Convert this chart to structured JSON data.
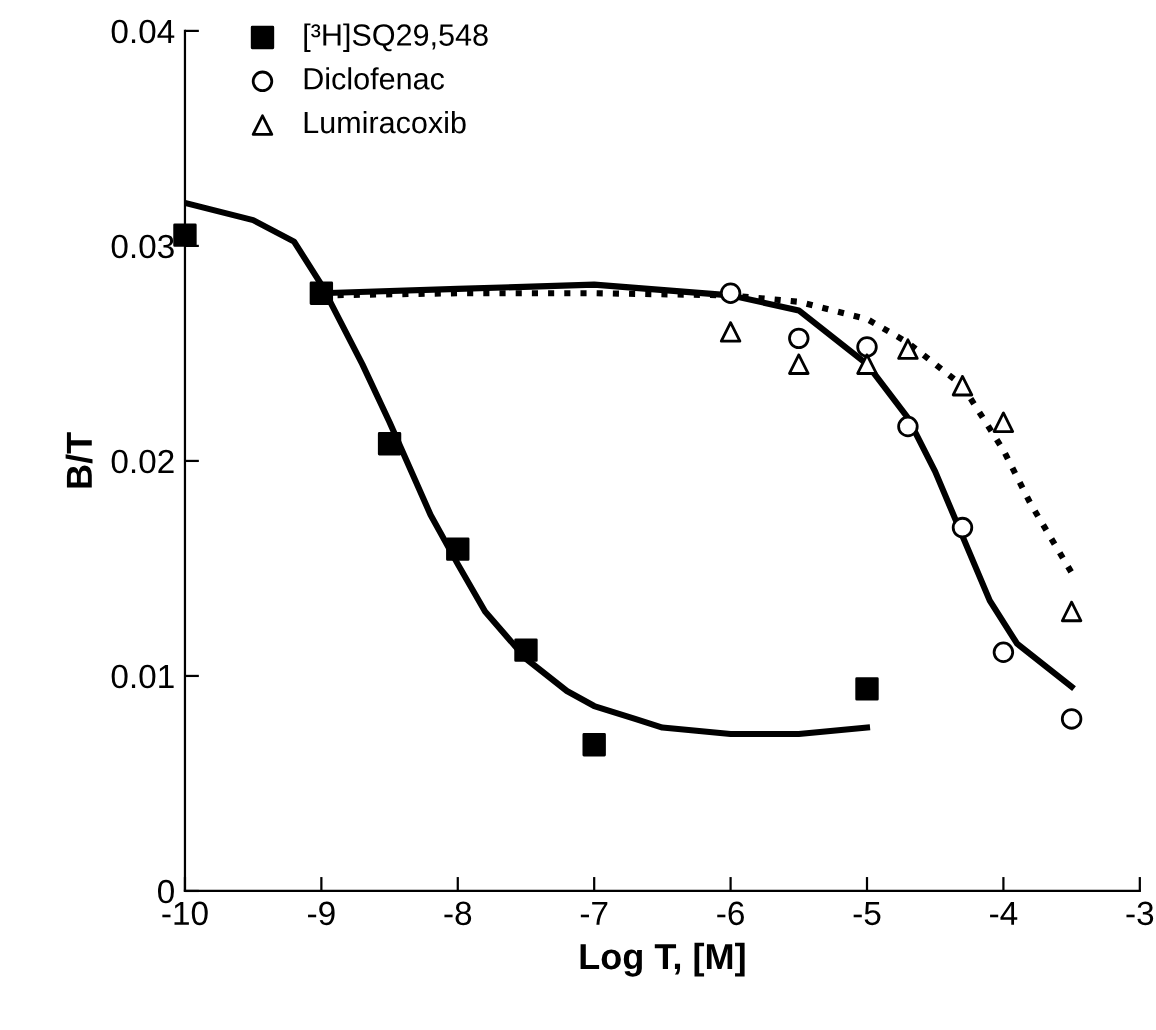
{
  "chart_data": {
    "type": "scatter",
    "xlabel": "Log T, [M]",
    "ylabel": "B/T",
    "xlim": [
      -10,
      -3
    ],
    "ylim": [
      0,
      0.04
    ],
    "xticks": [
      -10,
      -9,
      -8,
      -7,
      -6,
      -5,
      -4,
      -3
    ],
    "yticks": [
      0,
      0.01,
      0.02,
      0.03,
      0.04
    ],
    "grid": false,
    "legend": "top left",
    "series": [
      {
        "name": "[³H]SQ29,548",
        "marker": "square",
        "color": "#000000",
        "x": [
          -10,
          -9,
          -8.5,
          -8,
          -7.5,
          -7,
          -5
        ],
        "values": [
          0.0305,
          0.0278,
          0.0208,
          0.0159,
          0.0112,
          0.0068,
          0.0094
        ]
      },
      {
        "name": "Diclofenac",
        "marker": "circle",
        "color": "#000000",
        "x": [
          -6,
          -5.5,
          -5,
          -4.7,
          -4.3,
          -4,
          -3.5
        ],
        "values": [
          0.0278,
          0.0257,
          0.0253,
          0.0216,
          0.0169,
          0.0111,
          0.008
        ]
      },
      {
        "name": "Lumiracoxib",
        "marker": "triangle",
        "color": "#000000",
        "x": [
          -6,
          -5.5,
          -5,
          -4.7,
          -4.3,
          -4,
          -3.5
        ],
        "values": [
          0.026,
          0.0245,
          0.0245,
          0.0252,
          0.0235,
          0.0218,
          0.013
        ]
      },
      {
        "type": "line",
        "line_style": "solid",
        "color": "#000000",
        "x": [
          -10,
          -9.5,
          -9.2,
          -9,
          -8.7,
          -8.5,
          -8.2,
          -8,
          -7.8,
          -7.5,
          -7.2,
          -7,
          -6.7,
          -6.5,
          -6,
          -5.5,
          -5
        ],
        "values": [
          0.032,
          0.0312,
          0.0302,
          0.0282,
          0.0245,
          0.0218,
          0.0175,
          0.0152,
          0.013,
          0.0108,
          0.0093,
          0.0086,
          0.008,
          0.0076,
          0.0073,
          0.0073,
          0.0076
        ]
      },
      {
        "type": "line",
        "line_style": "solid",
        "color": "#000000",
        "x": [
          -9,
          -8,
          -7,
          -6,
          -5.5,
          -5,
          -4.7,
          -4.5,
          -4.3,
          -4.1,
          -3.9,
          -3.5
        ],
        "values": [
          0.0278,
          0.028,
          0.0282,
          0.0277,
          0.027,
          0.0245,
          0.022,
          0.0195,
          0.0165,
          0.0135,
          0.0115,
          0.0095
        ]
      },
      {
        "type": "line",
        "line_style": "dotted",
        "color": "#000000",
        "x": [
          -9,
          -8,
          -7,
          -6,
          -5.5,
          -5,
          -4.7,
          -4.3,
          -4,
          -3.8,
          -3.5
        ],
        "values": [
          0.0277,
          0.0278,
          0.0278,
          0.0277,
          0.0274,
          0.0266,
          0.0255,
          0.0235,
          0.0205,
          0.018,
          0.0148
        ]
      }
    ]
  }
}
